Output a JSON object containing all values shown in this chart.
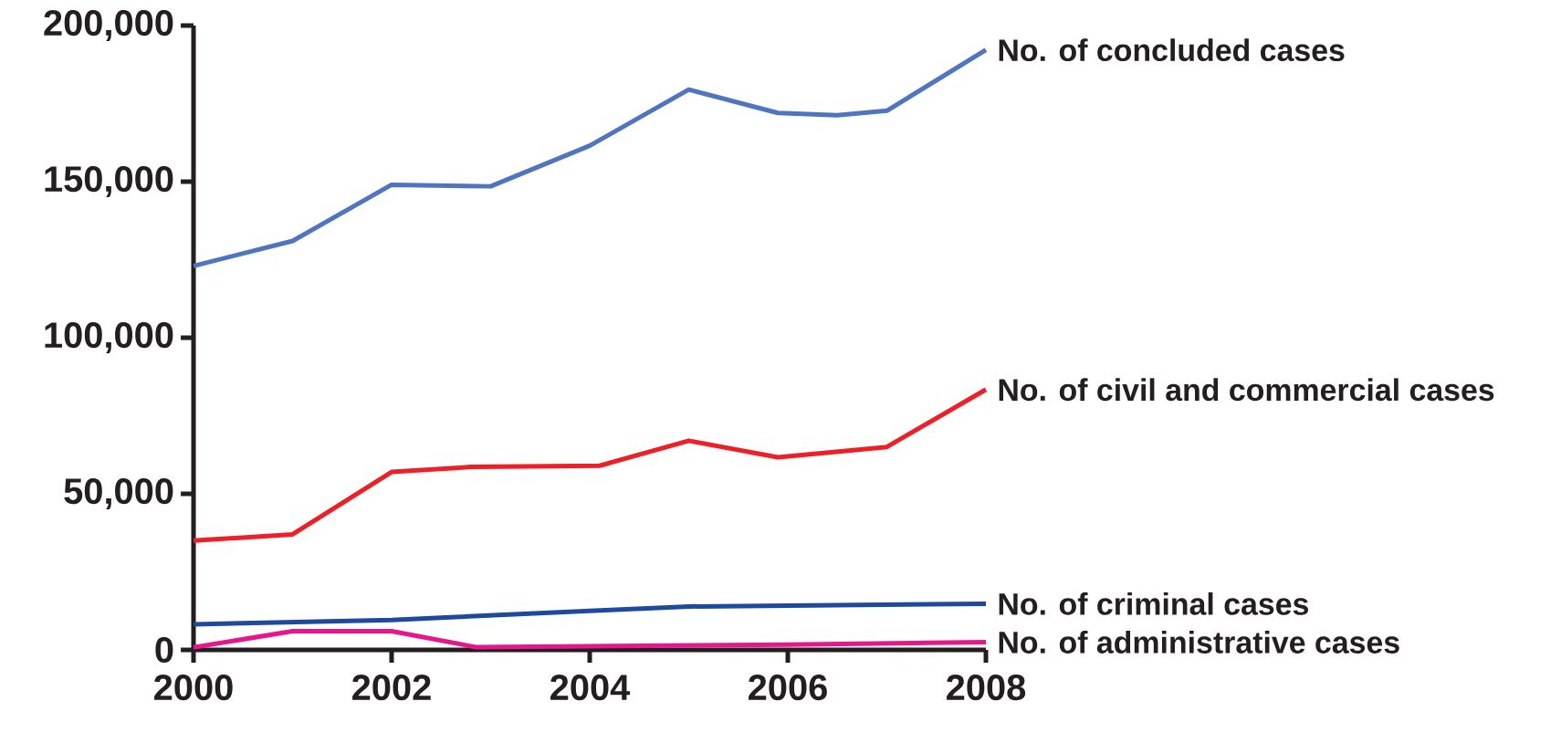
{
  "chart_data": {
    "type": "line",
    "xlim": [
      2000,
      2008
    ],
    "xticks": [
      2000,
      2002,
      2004,
      2006,
      2008
    ],
    "ylim": [
      0,
      200000
    ],
    "yticks": [
      {
        "value": 0,
        "label": "0"
      },
      {
        "value": 50000,
        "label": "50,000"
      },
      {
        "value": 100000,
        "label": "100,000"
      },
      {
        "value": 150000,
        "label": "150,000"
      },
      {
        "value": 200000,
        "label": "200,000"
      }
    ],
    "series": [
      {
        "name": "No. of concluded cases",
        "color": "#4f75c1",
        "x": [
          2000,
          2001,
          2002,
          2003,
          2004,
          2005,
          2005.9,
          2006.5,
          2007,
          2008
        ],
        "values": [
          123000,
          131000,
          149000,
          148500,
          161500,
          179500,
          172000,
          171300,
          172700,
          192200
        ]
      },
      {
        "name": "No. of civil and commercial cases",
        "color": "#ee2027",
        "x": [
          2000,
          2001,
          2002,
          2002.8,
          2004.1,
          2005,
          2005.9,
          2007,
          2008
        ],
        "values": [
          35000,
          37000,
          57000,
          58600,
          59000,
          67000,
          61700,
          65000,
          83400
        ]
      },
      {
        "name": "No. of criminal cases",
        "color": "#1d4a9c",
        "x": [
          2000,
          2002,
          2004,
          2005,
          2008
        ],
        "values": [
          8200,
          9600,
          12500,
          13900,
          14800
        ]
      },
      {
        "name": "No. of administrative cases",
        "color": "#e6178d",
        "x": [
          2000,
          2001,
          2002,
          2002.85,
          2006,
          2008
        ],
        "values": [
          800,
          6000,
          6000,
          900,
          1700,
          2500
        ]
      }
    ]
  }
}
